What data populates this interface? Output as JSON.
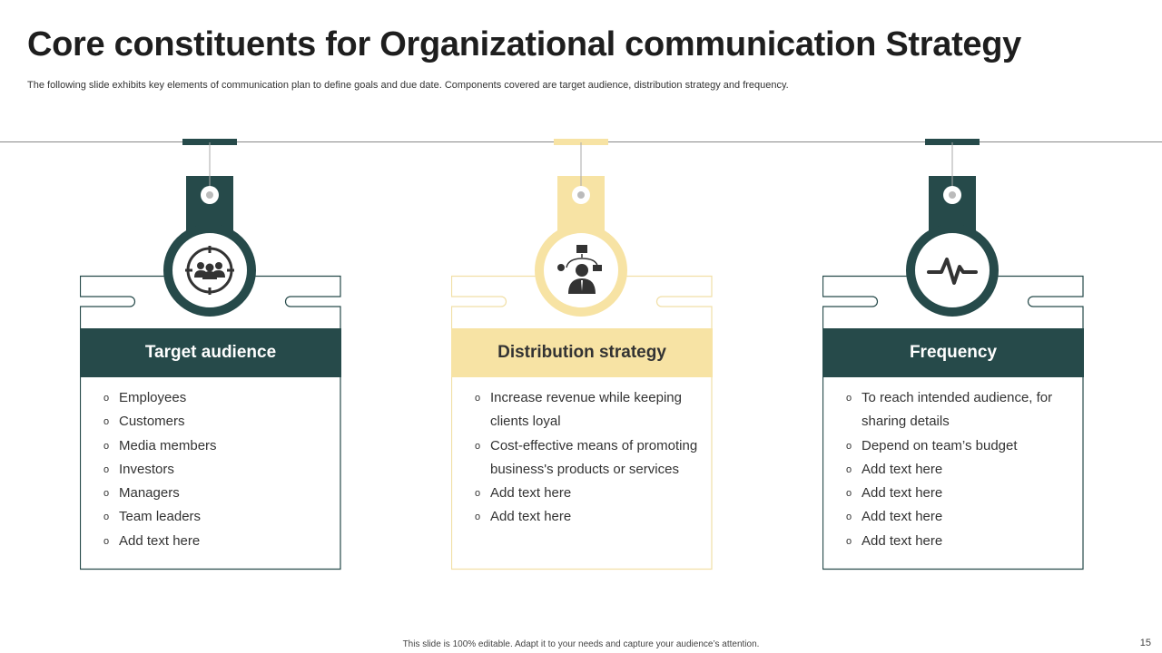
{
  "title": "Core constituents for Organizational communication Strategy",
  "subtitle": "The following slide exhibits key elements of communication plan to define goals and due date. Components covered are target audience, distribution strategy and frequency.",
  "colors": {
    "dark": "#264a4a",
    "light": "#f7e3a4"
  },
  "cards": [
    {
      "heading": "Target audience",
      "icon": "target-audience-icon",
      "theme": "dark",
      "items": [
        "Employees",
        "Customers",
        "Media members",
        "Investors",
        "Managers",
        "Team leaders",
        "Add text here"
      ]
    },
    {
      "heading": "Distribution strategy",
      "icon": "businessman-distribution-icon",
      "theme": "light",
      "items": [
        "Increase revenue while keeping clients loyal",
        "Cost-effective means of promoting business's products or services",
        "Add text here",
        "Add text here"
      ]
    },
    {
      "heading": "Frequency",
      "icon": "pulse-icon",
      "theme": "dark",
      "items": [
        "To reach intended audience, for sharing details",
        "Depend on team’s budget",
        "Add text here",
        "Add text here",
        "Add text here",
        "Add text here"
      ]
    }
  ],
  "bullet": "o",
  "footer": "This slide is 100% editable. Adapt it to your needs and capture your audience’s attention.",
  "page_number": "15"
}
